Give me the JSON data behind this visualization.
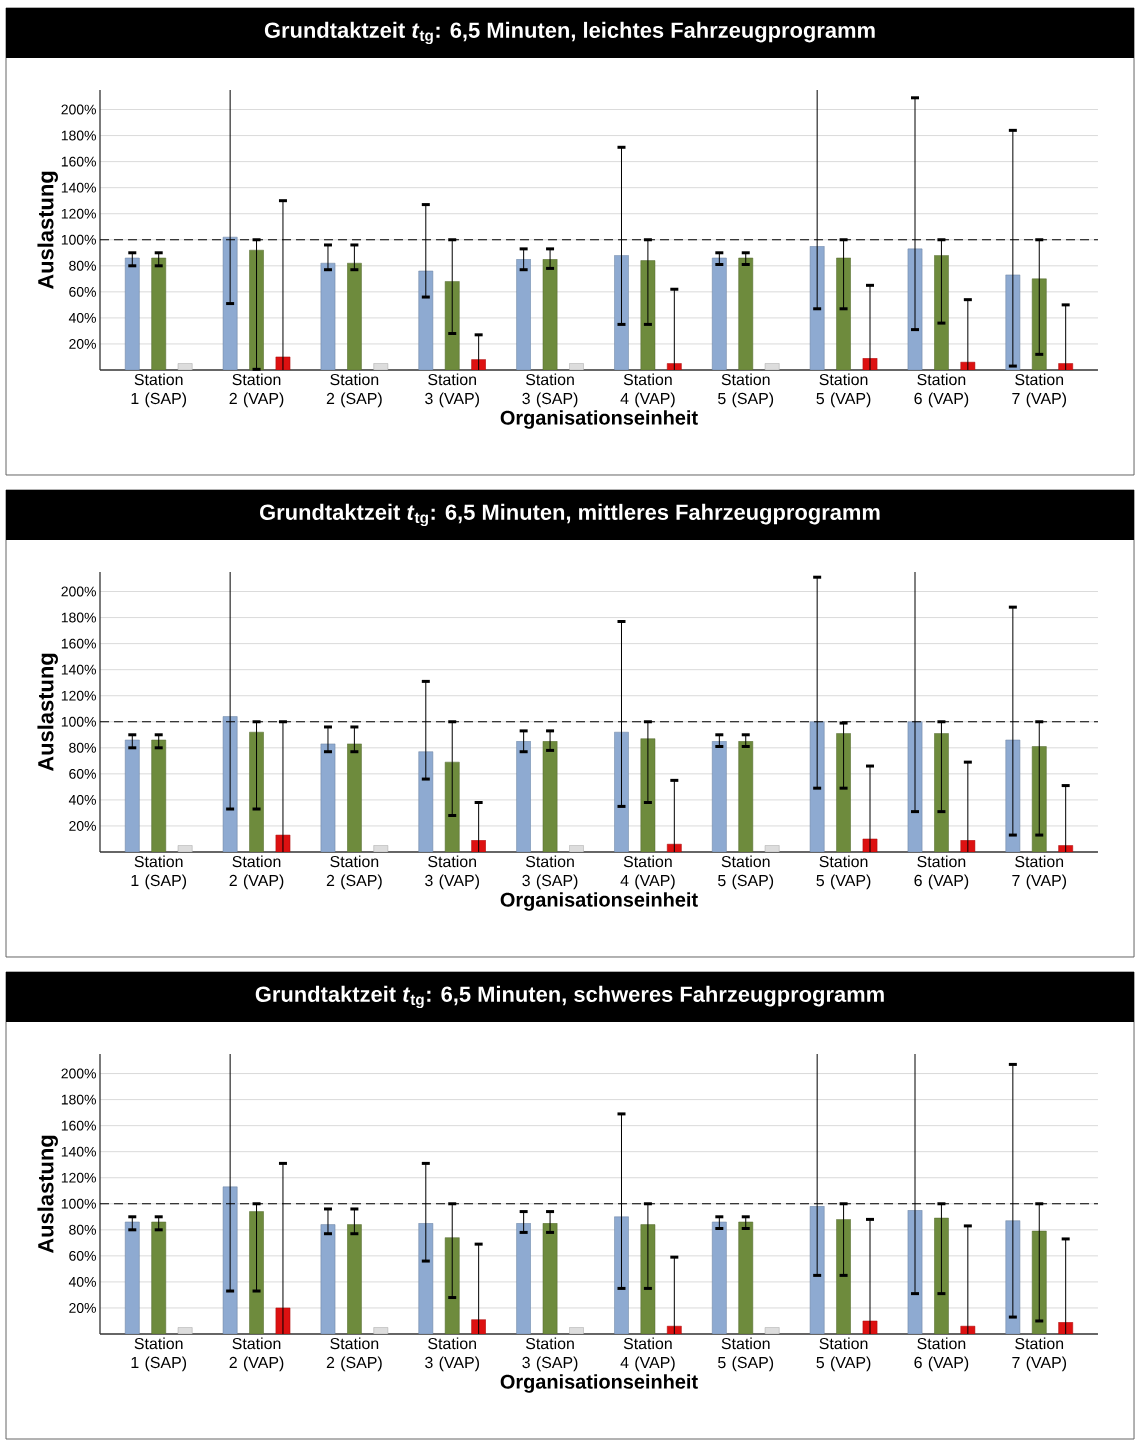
{
  "chart_data": [
    {
      "type": "bar",
      "title": "Grundtaktzeit *t*$_{tg}$: 6,5 Minuten, leichtes Fahrzeugprogramm",
      "xlabel": "Organisationseinheit",
      "ylabel": "Auslastung",
      "grid": "y",
      "ylim": [
        0,
        215
      ],
      "yticks": [
        {
          "value": 20,
          "label": "20%"
        },
        {
          "value": 40,
          "label": "40%"
        },
        {
          "value": 60,
          "label": "60%"
        },
        {
          "value": 80,
          "label": "80%"
        },
        {
          "value": 100,
          "label": "100%"
        },
        {
          "value": 120,
          "label": "120%"
        },
        {
          "value": 140,
          "label": "140%"
        },
        {
          "value": 160,
          "label": "160%"
        },
        {
          "value": 180,
          "label": "180%"
        },
        {
          "value": 200,
          "label": "200%"
        }
      ],
      "categories": [
        "Station 1 (SAP)",
        "Station 2 (VAP)",
        "Station 2 (SAP)",
        "Station 3 (VAP)",
        "Station 3 (SAP)",
        "Station 4 (VAP)",
        "Station 5 (SAP)",
        "Station 5 (VAP)",
        "Station 6 (VAP)",
        "Station 7 (VAP)"
      ],
      "ref_lines": [
        {
          "axis": "y",
          "value": 100,
          "color": "#000000",
          "line_style": "dashed"
        }
      ],
      "series": [
        {
          "color": "#8eaad1",
          "values": [
            86,
            102,
            82,
            76,
            85,
            88,
            86,
            95,
            93,
            73
          ],
          "errors": [
            [
              80,
              90
            ],
            [
              51,
              215
            ],
            [
              77,
              96
            ],
            [
              56,
              127
            ],
            [
              77,
              93
            ],
            [
              35,
              171
            ],
            [
              81,
              90
            ],
            [
              47,
              215
            ],
            [
              31,
              209
            ],
            [
              3,
              184
            ]
          ]
        },
        {
          "color": "#6e8b3d",
          "values": [
            86,
            92,
            82,
            68,
            85,
            84,
            86,
            86,
            88,
            70
          ],
          "errors": [
            [
              80,
              90
            ],
            [
              0.5,
              100
            ],
            [
              77,
              96
            ],
            [
              28,
              100
            ],
            [
              78,
              93
            ],
            [
              35,
              100
            ],
            [
              81,
              90
            ],
            [
              47,
              100
            ],
            [
              36,
              100
            ],
            [
              12,
              100
            ]
          ]
        },
        {
          "colors": [
            "#dddddd",
            "#dd1111",
            "#dddddd",
            "#dd1111",
            "#dddddd",
            "#dd1111",
            "#dddddd",
            "#dd1111",
            "#dd1111",
            "#dd1111"
          ],
          "values": [
            5,
            10,
            5,
            8,
            5,
            5,
            5,
            9,
            6,
            5
          ],
          "errors": [
            null,
            [
              0,
              130
            ],
            null,
            [
              0,
              27
            ],
            null,
            [
              0,
              62
            ],
            null,
            [
              0,
              65
            ],
            [
              0,
              54
            ],
            [
              0,
              50
            ]
          ]
        }
      ]
    },
    {
      "type": "bar",
      "title": "Grundtaktzeit *t*$_{tg}$: 6,5 Minuten, mittleres Fahrzeugprogramm",
      "xlabel": "Organisationseinheit",
      "ylabel": "Auslastung",
      "grid": "y",
      "ylim": [
        0,
        215
      ],
      "yticks": [
        {
          "value": 20,
          "label": "20%"
        },
        {
          "value": 40,
          "label": "40%"
        },
        {
          "value": 60,
          "label": "60%"
        },
        {
          "value": 80,
          "label": "80%"
        },
        {
          "value": 100,
          "label": "100%"
        },
        {
          "value": 120,
          "label": "120%"
        },
        {
          "value": 140,
          "label": "140%"
        },
        {
          "value": 160,
          "label": "160%"
        },
        {
          "value": 180,
          "label": "180%"
        },
        {
          "value": 200,
          "label": "200%"
        }
      ],
      "categories": [
        "Station 1 (SAP)",
        "Station 2 (VAP)",
        "Station 2 (SAP)",
        "Station 3 (VAP)",
        "Station 3 (SAP)",
        "Station 4 (VAP)",
        "Station 5 (SAP)",
        "Station 5 (VAP)",
        "Station 6 (VAP)",
        "Station 7 (VAP)"
      ],
      "ref_lines": [
        {
          "axis": "y",
          "value": 100,
          "color": "#000000",
          "line_style": "dashed"
        }
      ],
      "series": [
        {
          "color": "#8eaad1",
          "values": [
            86,
            104,
            83,
            77,
            85,
            92,
            85,
            100,
            100,
            86
          ],
          "errors": [
            [
              80,
              90
            ],
            [
              33,
              215
            ],
            [
              77,
              96
            ],
            [
              56,
              131
            ],
            [
              77,
              93
            ],
            [
              35,
              177
            ],
            [
              81,
              90
            ],
            [
              49,
              211
            ],
            [
              31,
              215
            ],
            [
              13,
              188
            ]
          ]
        },
        {
          "color": "#6e8b3d",
          "values": [
            86,
            92,
            83,
            69,
            85,
            87,
            85,
            91,
            91,
            81
          ],
          "errors": [
            [
              80,
              90
            ],
            [
              33,
              100
            ],
            [
              77,
              96
            ],
            [
              28,
              100
            ],
            [
              78,
              93
            ],
            [
              38,
              100
            ],
            [
              81,
              90
            ],
            [
              49,
              99
            ],
            [
              31,
              100
            ],
            [
              13,
              100
            ]
          ]
        },
        {
          "colors": [
            "#dddddd",
            "#dd1111",
            "#dddddd",
            "#dd1111",
            "#dddddd",
            "#dd1111",
            "#dddddd",
            "#dd1111",
            "#dd1111",
            "#dd1111"
          ],
          "values": [
            5,
            13,
            5,
            9,
            5,
            6,
            5,
            10,
            9,
            5
          ],
          "errors": [
            null,
            [
              0,
              100
            ],
            null,
            [
              0,
              38
            ],
            null,
            [
              0,
              55
            ],
            null,
            [
              0,
              66
            ],
            [
              0,
              69
            ],
            [
              0,
              51
            ]
          ]
        }
      ]
    },
    {
      "type": "bar",
      "title": "Grundtaktzeit *t*$_{tg}$: 6,5 Minuten, schweres Fahrzeugprogramm",
      "xlabel": "Organisationseinheit",
      "ylabel": "Auslastung",
      "grid": "y",
      "ylim": [
        0,
        215
      ],
      "yticks": [
        {
          "value": 20,
          "label": "20%"
        },
        {
          "value": 40,
          "label": "40%"
        },
        {
          "value": 60,
          "label": "60%"
        },
        {
          "value": 80,
          "label": "80%"
        },
        {
          "value": 100,
          "label": "100%"
        },
        {
          "value": 120,
          "label": "120%"
        },
        {
          "value": 140,
          "label": "140%"
        },
        {
          "value": 160,
          "label": "160%"
        },
        {
          "value": 180,
          "label": "180%"
        },
        {
          "value": 200,
          "label": "200%"
        }
      ],
      "categories": [
        "Station 1 (SAP)",
        "Station 2 (VAP)",
        "Station 2 (SAP)",
        "Station 3 (VAP)",
        "Station 3 (SAP)",
        "Station 4 (VAP)",
        "Station 5 (SAP)",
        "Station 5 (VAP)",
        "Station 6 (VAP)",
        "Station 7 (VAP)"
      ],
      "ref_lines": [
        {
          "axis": "y",
          "value": 100,
          "color": "#000000",
          "line_style": "dashed"
        }
      ],
      "series": [
        {
          "color": "#8eaad1",
          "values": [
            86,
            113,
            84,
            85,
            85,
            90,
            86,
            98,
            95,
            87
          ],
          "errors": [
            [
              80,
              90
            ],
            [
              33,
              215
            ],
            [
              77,
              96
            ],
            [
              56,
              131
            ],
            [
              78,
              94
            ],
            [
              35,
              169
            ],
            [
              81,
              90
            ],
            [
              45,
              215
            ],
            [
              31,
              215
            ],
            [
              13,
              207
            ]
          ]
        },
        {
          "color": "#6e8b3d",
          "values": [
            86,
            94,
            84,
            74,
            85,
            84,
            86,
            88,
            89,
            79
          ],
          "errors": [
            [
              80,
              90
            ],
            [
              33,
              100
            ],
            [
              77,
              96
            ],
            [
              28,
              100
            ],
            [
              78,
              94
            ],
            [
              35,
              100
            ],
            [
              81,
              90
            ],
            [
              45,
              100
            ],
            [
              31,
              100
            ],
            [
              10,
              100
            ]
          ]
        },
        {
          "colors": [
            "#dddddd",
            "#dd1111",
            "#dddddd",
            "#dd1111",
            "#dddddd",
            "#dd1111",
            "#dddddd",
            "#dd1111",
            "#dd1111",
            "#dd1111"
          ],
          "values": [
            5,
            20,
            5,
            11,
            5,
            6,
            5,
            10,
            6,
            9
          ],
          "errors": [
            null,
            [
              0,
              131
            ],
            null,
            [
              0,
              69
            ],
            null,
            [
              0,
              59
            ],
            null,
            [
              0,
              88
            ],
            [
              0,
              83
            ],
            [
              0,
              73
            ]
          ]
        }
      ]
    }
  ]
}
